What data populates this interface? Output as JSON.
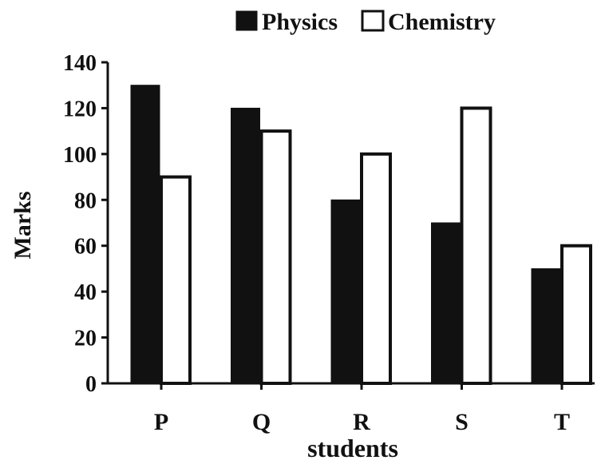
{
  "chart_data": {
    "type": "bar",
    "title": "",
    "xlabel": "students",
    "ylabel": "Marks",
    "categories": [
      "P",
      "Q",
      "R",
      "S",
      "T"
    ],
    "series": [
      {
        "name": "Physics",
        "values": [
          130,
          120,
          80,
          70,
          50
        ],
        "color": "#111111"
      },
      {
        "name": "Chemistry",
        "values": [
          90,
          110,
          100,
          120,
          60
        ],
        "color": "#ffffff"
      }
    ],
    "ylim": [
      0,
      140
    ],
    "yticks": [
      0,
      20,
      40,
      60,
      80,
      100,
      120,
      140
    ],
    "grid": false,
    "legend_position": "top"
  }
}
